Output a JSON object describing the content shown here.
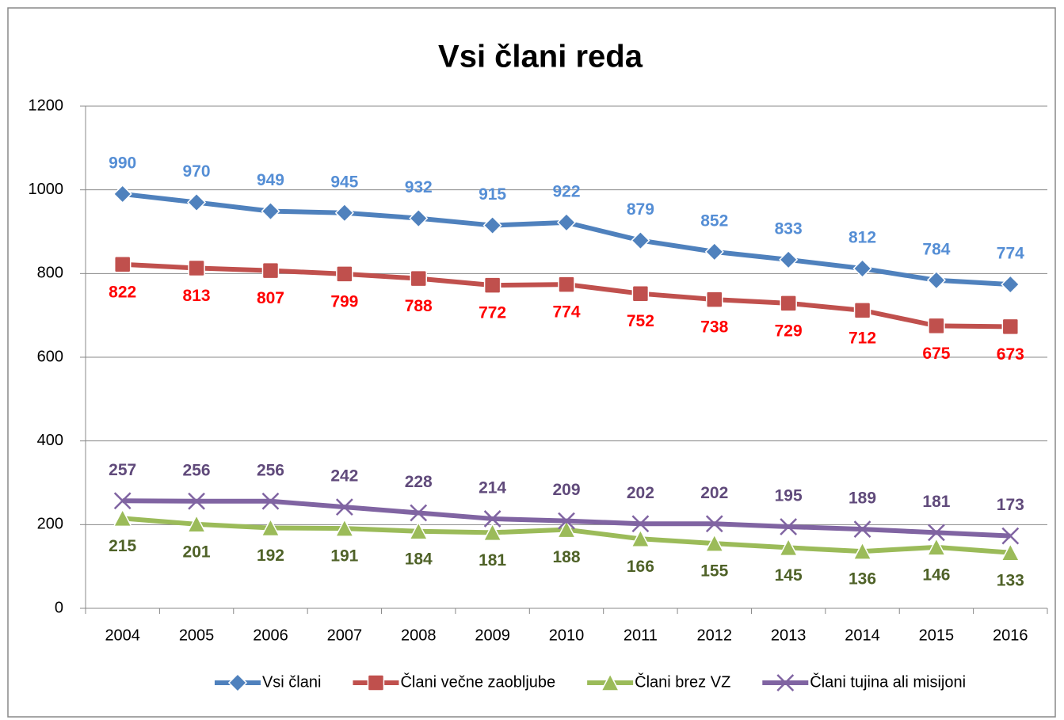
{
  "chart_data": {
    "type": "line",
    "title": "Vsi člani reda",
    "categories": [
      "2004",
      "2005",
      "2006",
      "2007",
      "2008",
      "2009",
      "2010",
      "2011",
      "2012",
      "2013",
      "2014",
      "2015",
      "2016"
    ],
    "series": [
      {
        "name": "Vsi člani",
        "color": "#4f81bd",
        "marker": "diamond",
        "label_color": "#558ed5",
        "label_position": "above",
        "values": [
          990,
          970,
          949,
          945,
          932,
          915,
          922,
          879,
          852,
          833,
          812,
          784,
          774
        ]
      },
      {
        "name": "Člani večne zaobljube",
        "color": "#c0504d",
        "marker": "square",
        "label_color": "#ff0000",
        "label_position": "below",
        "values": [
          822,
          813,
          807,
          799,
          788,
          772,
          774,
          752,
          738,
          729,
          712,
          675,
          673
        ]
      },
      {
        "name": "Člani brez VZ",
        "color": "#9bbb59",
        "marker": "triangle",
        "label_color": "#4f6228",
        "label_position": "below",
        "values": [
          215,
          201,
          192,
          191,
          184,
          181,
          188,
          166,
          155,
          145,
          136,
          146,
          133
        ]
      },
      {
        "name": "Člani tujina ali misijoni",
        "color": "#8064a2",
        "marker": "x",
        "label_color": "#604a7b",
        "label_position": "above",
        "values": [
          257,
          256,
          256,
          242,
          228,
          214,
          209,
          202,
          202,
          195,
          189,
          181,
          173
        ]
      }
    ],
    "ylim": [
      0,
      1200
    ],
    "yticks": [
      0,
      200,
      400,
      600,
      800,
      1000,
      1200
    ],
    "grid": true,
    "legend": "bottom"
  }
}
